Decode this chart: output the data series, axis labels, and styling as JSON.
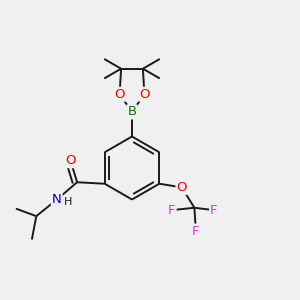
{
  "bg_color": "#f0f0f0",
  "bond_color": "#1a1a1a",
  "bond_lw": 1.4,
  "atom_colors": {
    "O": "#ff0000",
    "B": "#007700",
    "N": "#0000cc",
    "F": "#cc44cc",
    "C": "#1a1a1a"
  },
  "font_size_atom": 9.5,
  "font_size_H": 8.0
}
